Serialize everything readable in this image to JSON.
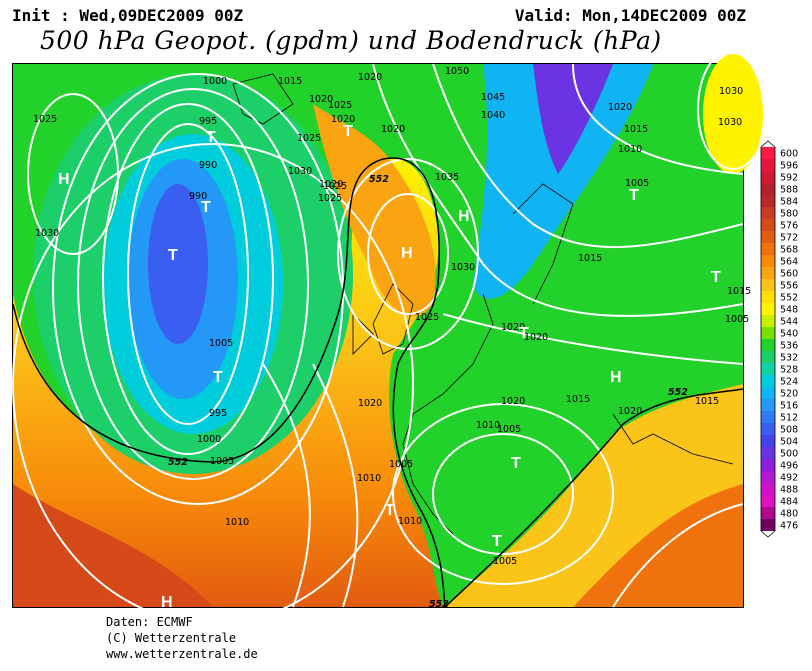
{
  "header": {
    "init": "Init : Wed,09DEC2009 00Z",
    "valid": "Valid: Mon,14DEC2009 00Z",
    "title": "500 hPa Geopot. (gpdm) und Bodendruck (hPa)"
  },
  "footer": {
    "data": "Daten: ECMWF",
    "copyright": "(C) Wetterzentrale",
    "url": "www.wetterzentrale.de"
  },
  "legend": {
    "values": [
      "600",
      "596",
      "592",
      "588",
      "584",
      "580",
      "576",
      "572",
      "568",
      "564",
      "560",
      "556",
      "552",
      "548",
      "544",
      "540",
      "536",
      "532",
      "528",
      "524",
      "520",
      "516",
      "512",
      "508",
      "504",
      "500",
      "496",
      "492",
      "488",
      "484",
      "480",
      "476"
    ],
    "colors": [
      "#ff1a4a",
      "#e8163e",
      "#d11a36",
      "#b6202e",
      "#b62a2a",
      "#c53b24",
      "#d54a18",
      "#e25c10",
      "#f0720c",
      "#f88a0a",
      "#fba412",
      "#fbc418",
      "#ffe000",
      "#fff300",
      "#c8f000",
      "#78e000",
      "#22d12a",
      "#1ccf68",
      "#14d0a2",
      "#00cddc",
      "#10b4f2",
      "#2398f6",
      "#2f7cf6",
      "#3a5ef0",
      "#4444ea",
      "#6a34e2",
      "#8c20dc",
      "#b018d2",
      "#d212c8",
      "#e010c0",
      "#b0088c",
      "#700060"
    ]
  },
  "map": {
    "pressure_labels": [
      "1000",
      "1005",
      "1015",
      "1020",
      "1020",
      "1050",
      "995",
      "1025",
      "1025",
      "1045",
      "1020",
      "1020",
      "1025",
      "1020",
      "1040",
      "1015",
      "990",
      "1025",
      "1010",
      "1035",
      "1030",
      "1020",
      "1005",
      "1030",
      "1025",
      "1015",
      "990",
      "1030",
      "1025",
      "1020",
      "1020",
      "1015",
      "995",
      "1000",
      "1005",
      "1020",
      "1015",
      "1010",
      "1005",
      "1010",
      "1010",
      "1010",
      "1005",
      "1030",
      "1020",
      "1015",
      "1020",
      "1005",
      "1030",
      "1005"
    ],
    "pressure_label_positions_note": "",
    "centers": [
      {
        "type": "H"
      },
      {
        "type": "T"
      },
      {
        "type": "T"
      },
      {
        "type": "T"
      },
      {
        "type": "T"
      },
      {
        "type": "H"
      },
      {
        "type": "H"
      },
      {
        "type": "T"
      },
      {
        "type": "T"
      },
      {
        "type": "H"
      },
      {
        "type": "T"
      },
      {
        "type": "T"
      },
      {
        "type": "T"
      },
      {
        "type": "T"
      },
      {
        "type": "H"
      },
      {
        "type": "T"
      }
    ],
    "contour_label": "552"
  }
}
